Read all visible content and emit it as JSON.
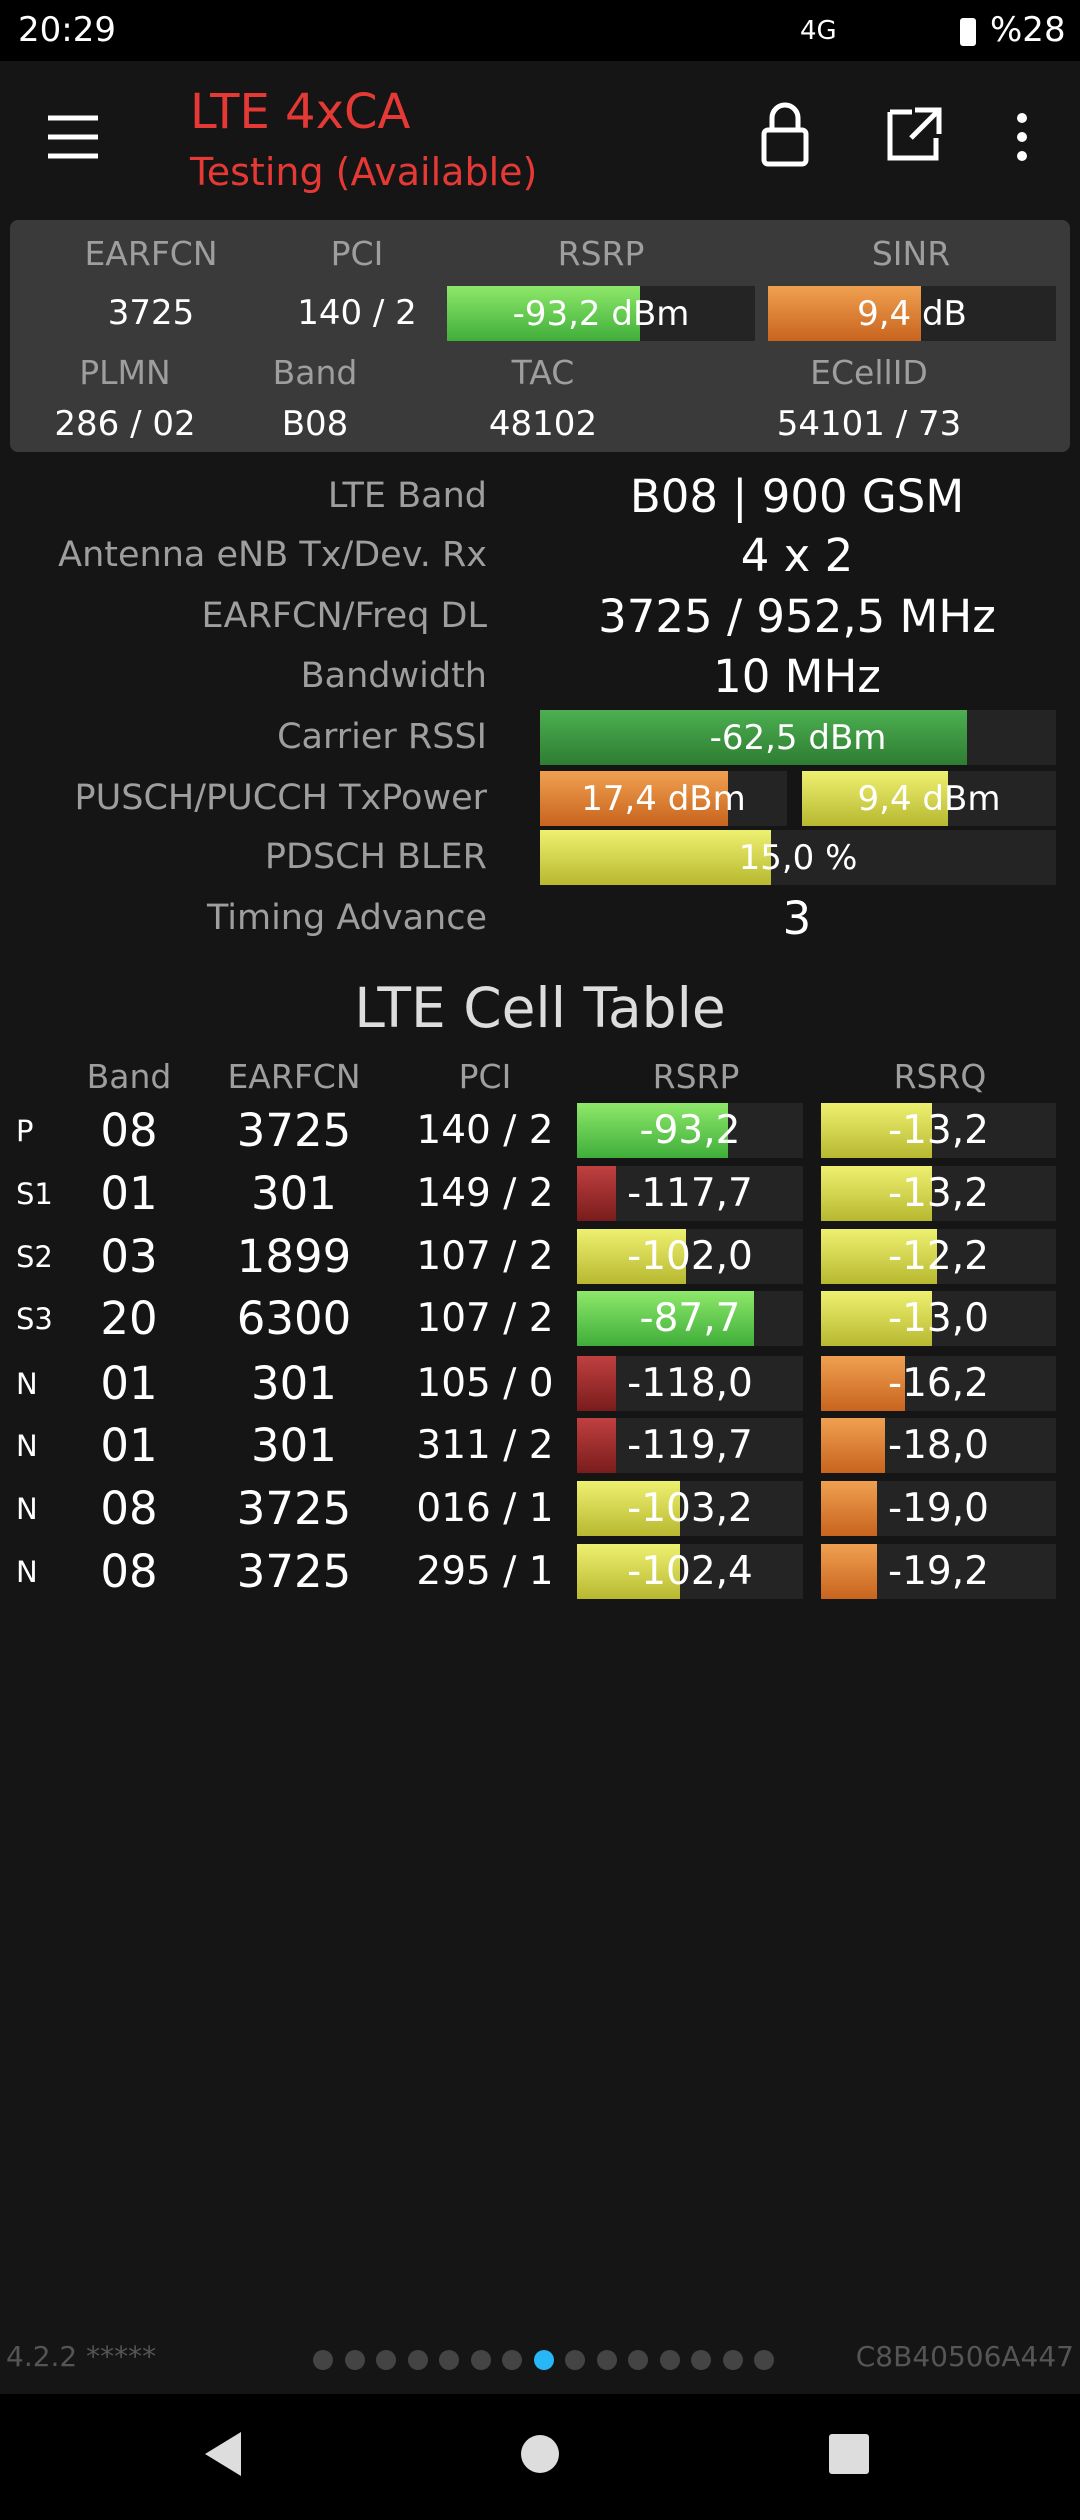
{
  "status_bar": {
    "time": "20:29",
    "network": "4G",
    "battery": "%28"
  },
  "app_bar": {
    "title": "LTE 4xCA",
    "subtitle": "Testing (Available)"
  },
  "summary": {
    "headers_top": [
      "EARFCN",
      "PCI",
      "RSRP",
      "SINR"
    ],
    "values_top": [
      "3725",
      "140 / 2",
      "-93,2 dBm",
      "9,4 dB"
    ],
    "headers_bottom": [
      "PLMN",
      "Band",
      "TAC",
      "ECellID"
    ],
    "values_bottom": [
      "286 / 02",
      "B08",
      "48102",
      "54101 / 73"
    ]
  },
  "details": [
    {
      "label": "LTE Band",
      "value": "B08 | 900 GSM"
    },
    {
      "label": "Antenna eNB Tx/Dev. Rx",
      "value": "4 x 2"
    },
    {
      "label": "EARFCN/Freq DL",
      "value": "3725 / 952,5 MHz"
    },
    {
      "label": "Bandwidth",
      "value": "10 MHz"
    },
    {
      "label": "Carrier RSSI",
      "value": "-62,5 dBm"
    },
    {
      "label": "PUSCH/PUCCH TxPower",
      "value": "17,4 dBm",
      "value2": "9,4 dBm"
    },
    {
      "label": "PDSCH BLER",
      "value": "15,0 %"
    },
    {
      "label": "Timing Advance",
      "value": "3"
    }
  ],
  "cell_table": {
    "title": "LTE Cell Table",
    "headers": [
      "Band",
      "EARFCN",
      "PCI",
      "RSRP",
      "RSRQ"
    ],
    "rows": [
      [
        "P",
        "08",
        "3725",
        "140 / 2",
        "-93,2",
        "-13,2"
      ],
      [
        "S1",
        "01",
        "301",
        "149 / 2",
        "-117,7",
        "-13,2"
      ],
      [
        "S2",
        "03",
        "1899",
        "107 / 2",
        "-102,0",
        "-12,2"
      ],
      [
        "S3",
        "20",
        "6300",
        "107 / 2",
        "-87,7",
        "-13,0"
      ],
      [
        "N",
        "01",
        "301",
        "105 / 0",
        "-118,0",
        "-16,2"
      ],
      [
        "N",
        "01",
        "301",
        "311 / 2",
        "-119,7",
        "-18,0"
      ],
      [
        "N",
        "08",
        "3725",
        "016 / 1",
        "-103,2",
        "-19,0"
      ],
      [
        "N",
        "08",
        "3725",
        "295 / 1",
        "-102,4",
        "-19,2"
      ]
    ]
  },
  "footer": {
    "version": "4.2.2 *****",
    "device_id": "C8B40506A447"
  }
}
